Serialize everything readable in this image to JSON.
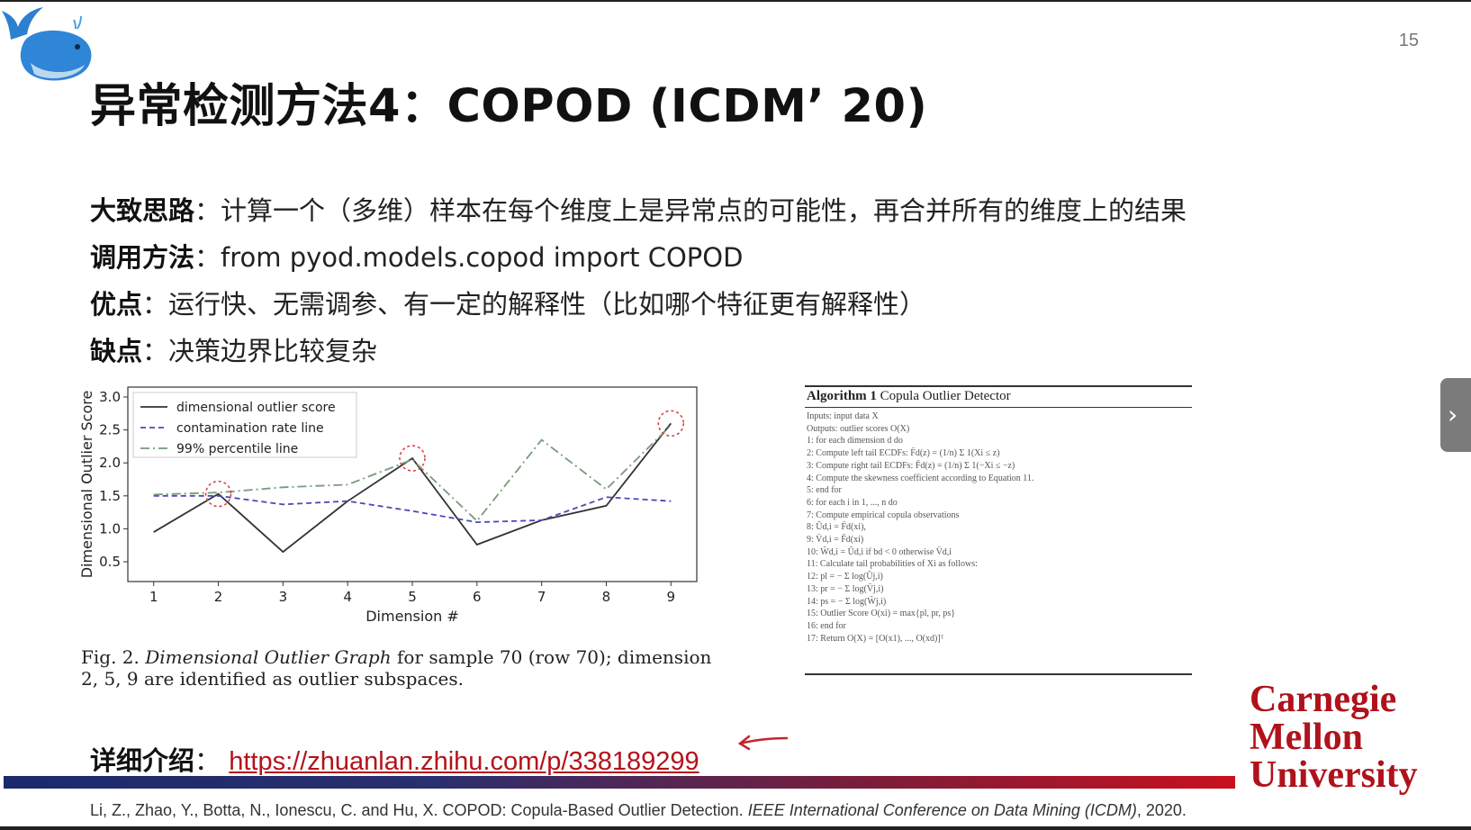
{
  "slide": {
    "page_number": "15",
    "title": "异常检测方法4：COPOD (ICDM’ 20)"
  },
  "bullets": [
    {
      "label": "大致思路",
      "text": "：计算一个（多维）样本在每个维度上是异常点的可能性，再合并所有的维度上的结果"
    },
    {
      "label": "调用方法",
      "text": "：from pyod.models.copod import COPOD"
    },
    {
      "label": "优点",
      "text": "：运行快、无需调参、有一定的解释性（比如哪个特征更有解释性）"
    },
    {
      "label": "缺点",
      "text": "：决策边界比较复杂"
    }
  ],
  "chart_data": {
    "type": "line",
    "xlabel": "Dimension #",
    "ylabel": "Dimensional Outlier Score",
    "x": [
      1,
      2,
      3,
      4,
      5,
      6,
      7,
      8,
      9
    ],
    "xlim": [
      0.6,
      9.4
    ],
    "ylim": [
      0.2,
      3.15
    ],
    "yticks": [
      0.5,
      1.0,
      1.5,
      2.0,
      2.5,
      3.0
    ],
    "ytick_labels": [
      "0.5",
      "1.0",
      "1.5",
      "2.0",
      "2.5",
      "3.0"
    ],
    "xtick_labels": [
      "1",
      "2",
      "3",
      "4",
      "5",
      "6",
      "7",
      "8",
      "9"
    ],
    "legend_position": "top-left",
    "series": [
      {
        "name": "dimensional outlier score",
        "color": "#333333",
        "style": "solid",
        "values": [
          0.95,
          1.53,
          0.65,
          1.42,
          2.07,
          0.76,
          1.13,
          1.35,
          2.6
        ]
      },
      {
        "name": "contamination rate line",
        "color": "#4a4ab8",
        "style": "dashed",
        "values": [
          1.5,
          1.5,
          1.37,
          1.42,
          1.27,
          1.1,
          1.13,
          1.48,
          1.42
        ]
      },
      {
        "name": "99% percentile line",
        "color": "#7a9a7a",
        "style": "dashdot",
        "values": [
          1.52,
          1.55,
          1.63,
          1.67,
          2.05,
          1.12,
          2.35,
          1.6,
          2.57
        ]
      }
    ],
    "highlighted_dimensions": [
      2,
      5,
      9
    ]
  },
  "caption": {
    "prefix": "Fig. 2.",
    "italic": "Dimensional Outlier Graph",
    "rest": "for sample 70 (row 70); dimension 2, 5, 9 are identified as outlier subspaces."
  },
  "algorithm": {
    "heading_bold": "Algorithm 1",
    "heading": "Copula Outlier Detector",
    "lines": [
      "Inputs: input data X",
      "Outputs: outlier scores O(X)",
      " 1: for each dimension d do",
      " 2:     Compute left tail ECDFs: F̂d(z) = (1/n) Σ 1(Xi ≤ z)",
      " 3:     Compute right tail ECDFs: F̄d(z) = (1/n) Σ 1(−Xi ≤ −z)",
      " 4:     Compute the skewness coefficient according to Equation 11.",
      " 5: end for",
      " 6: for each i in 1, ..., n do",
      " 7:     Compute empirical copula observations",
      " 8:         Ûd,i = F̂d(xi),",
      " 9:         V̂d,i = F̄d(xi)",
      "10:         Ŵd,i = Ûd,i if bd < 0 otherwise V̂d,i",
      "11:     Calculate tail probabilities of Xi as follows:",
      "12:         pl = − Σ log(Ûj,i)",
      "13:         pr = − Σ log(V̂j,i)",
      "14:         ps = − Σ log(Ŵj,i)",
      "15:     Outlier Score O(xi) = max{pl, pr, ps}",
      "16: end for",
      "17: Return O(X) = [O(x1), ..., O(xd)]ᵀ"
    ]
  },
  "link": {
    "label": "详细介绍",
    "colon": "：",
    "url": "https://zhuanlan.zhihu.com/p/338189299"
  },
  "cmu_logo": [
    "Carnegie",
    "Mellon",
    "University"
  ],
  "citation": {
    "plain": "Li, Z., Zhao, Y., Botta, N., Ionescu, C. and Hu, X. COPOD: Copula-Based Outlier Detection. ",
    "italic": "IEEE International Conference on Data Mining (ICDM)",
    "tail": ", 2020."
  },
  "side_tab_icon": "chevron-right-icon",
  "colors": {
    "accent_red": "#b0121b",
    "bar_start": "#1b2a6b",
    "bar_end": "#c8101e"
  }
}
